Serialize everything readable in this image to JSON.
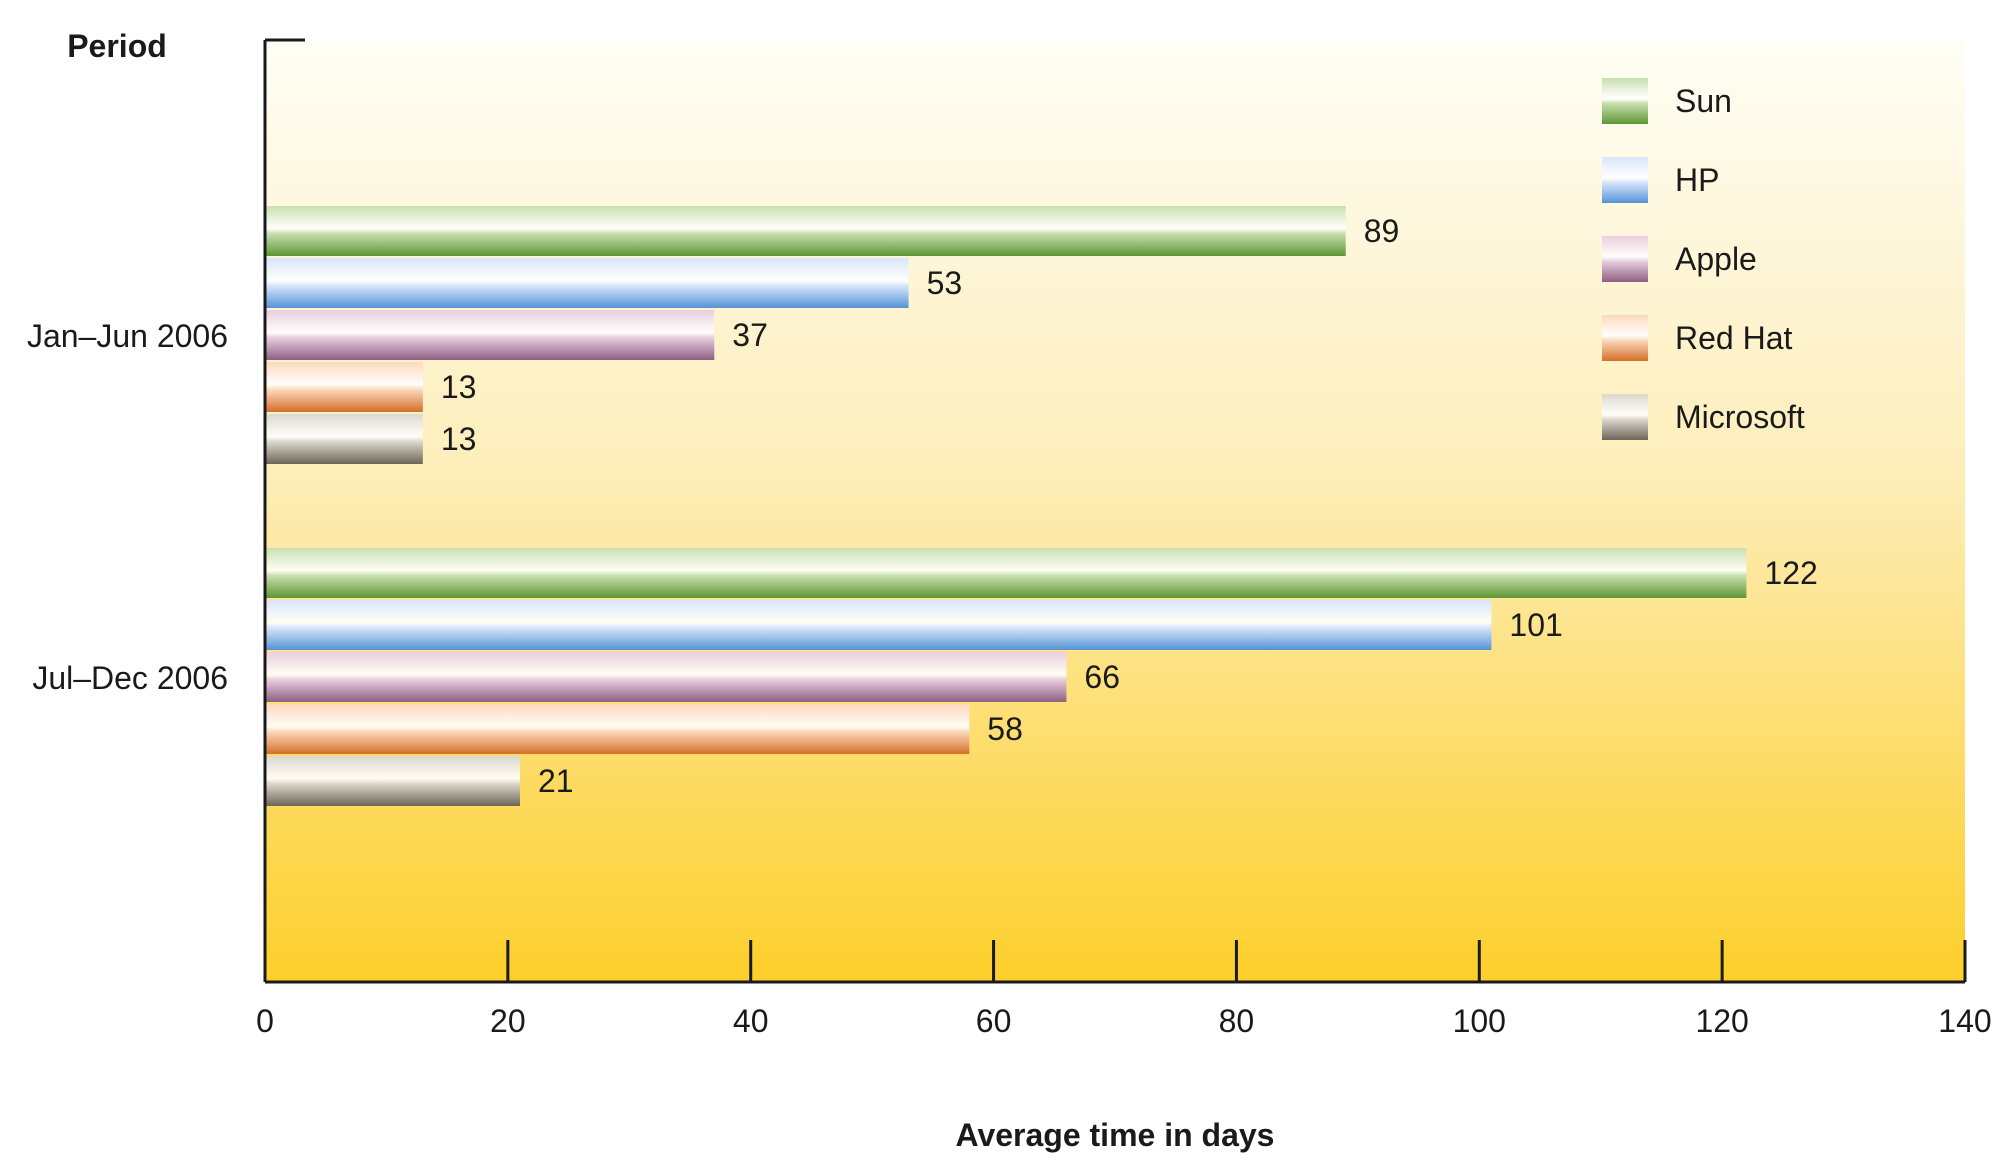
{
  "chart_data": {
    "type": "bar",
    "orientation": "horizontal",
    "ylabel": "Period",
    "xlabel": "Average time in days",
    "categories": [
      "Jan–Jun 2006",
      "Jul–Dec 2006"
    ],
    "series": [
      {
        "name": "Sun",
        "values": [
          89,
          122
        ]
      },
      {
        "name": "HP",
        "values": [
          53,
          101
        ]
      },
      {
        "name": "Apple",
        "values": [
          37,
          66
        ]
      },
      {
        "name": "Red Hat",
        "values": [
          13,
          58
        ]
      },
      {
        "name": "Microsoft",
        "values": [
          13,
          21
        ]
      }
    ],
    "xlim": [
      0,
      140
    ],
    "xticks": [
      0,
      20,
      40,
      60,
      80,
      100,
      120,
      140
    ],
    "xtick_labels": [
      "0",
      "20",
      "40",
      "60",
      "80",
      "100",
      "120",
      "140"
    ],
    "data_labels": [
      [
        "89",
        "53",
        "37",
        "13",
        "13"
      ],
      [
        "122",
        "101",
        "66",
        "58",
        "21"
      ]
    ],
    "grid": false,
    "legend_position": "top-right",
    "background": "gradient from cream (top) to golden yellow (bottom)",
    "colors": {
      "Sun": {
        "light": "#c9dfb0",
        "dark": "#5e9635"
      },
      "HP": {
        "light": "#d7e6fb",
        "dark": "#5593d6"
      },
      "Apple": {
        "light": "#e8cede",
        "dark": "#8e5f84"
      },
      "Red Hat": {
        "light": "#fbd9bd",
        "dark": "#d46f29"
      },
      "Microsoft": {
        "light": "#dcd8cd",
        "dark": "#6e6658"
      },
      "background_top": "#fffef6",
      "background_bottom": "#fdcf2a",
      "axis": "#1a1a1a"
    }
  }
}
